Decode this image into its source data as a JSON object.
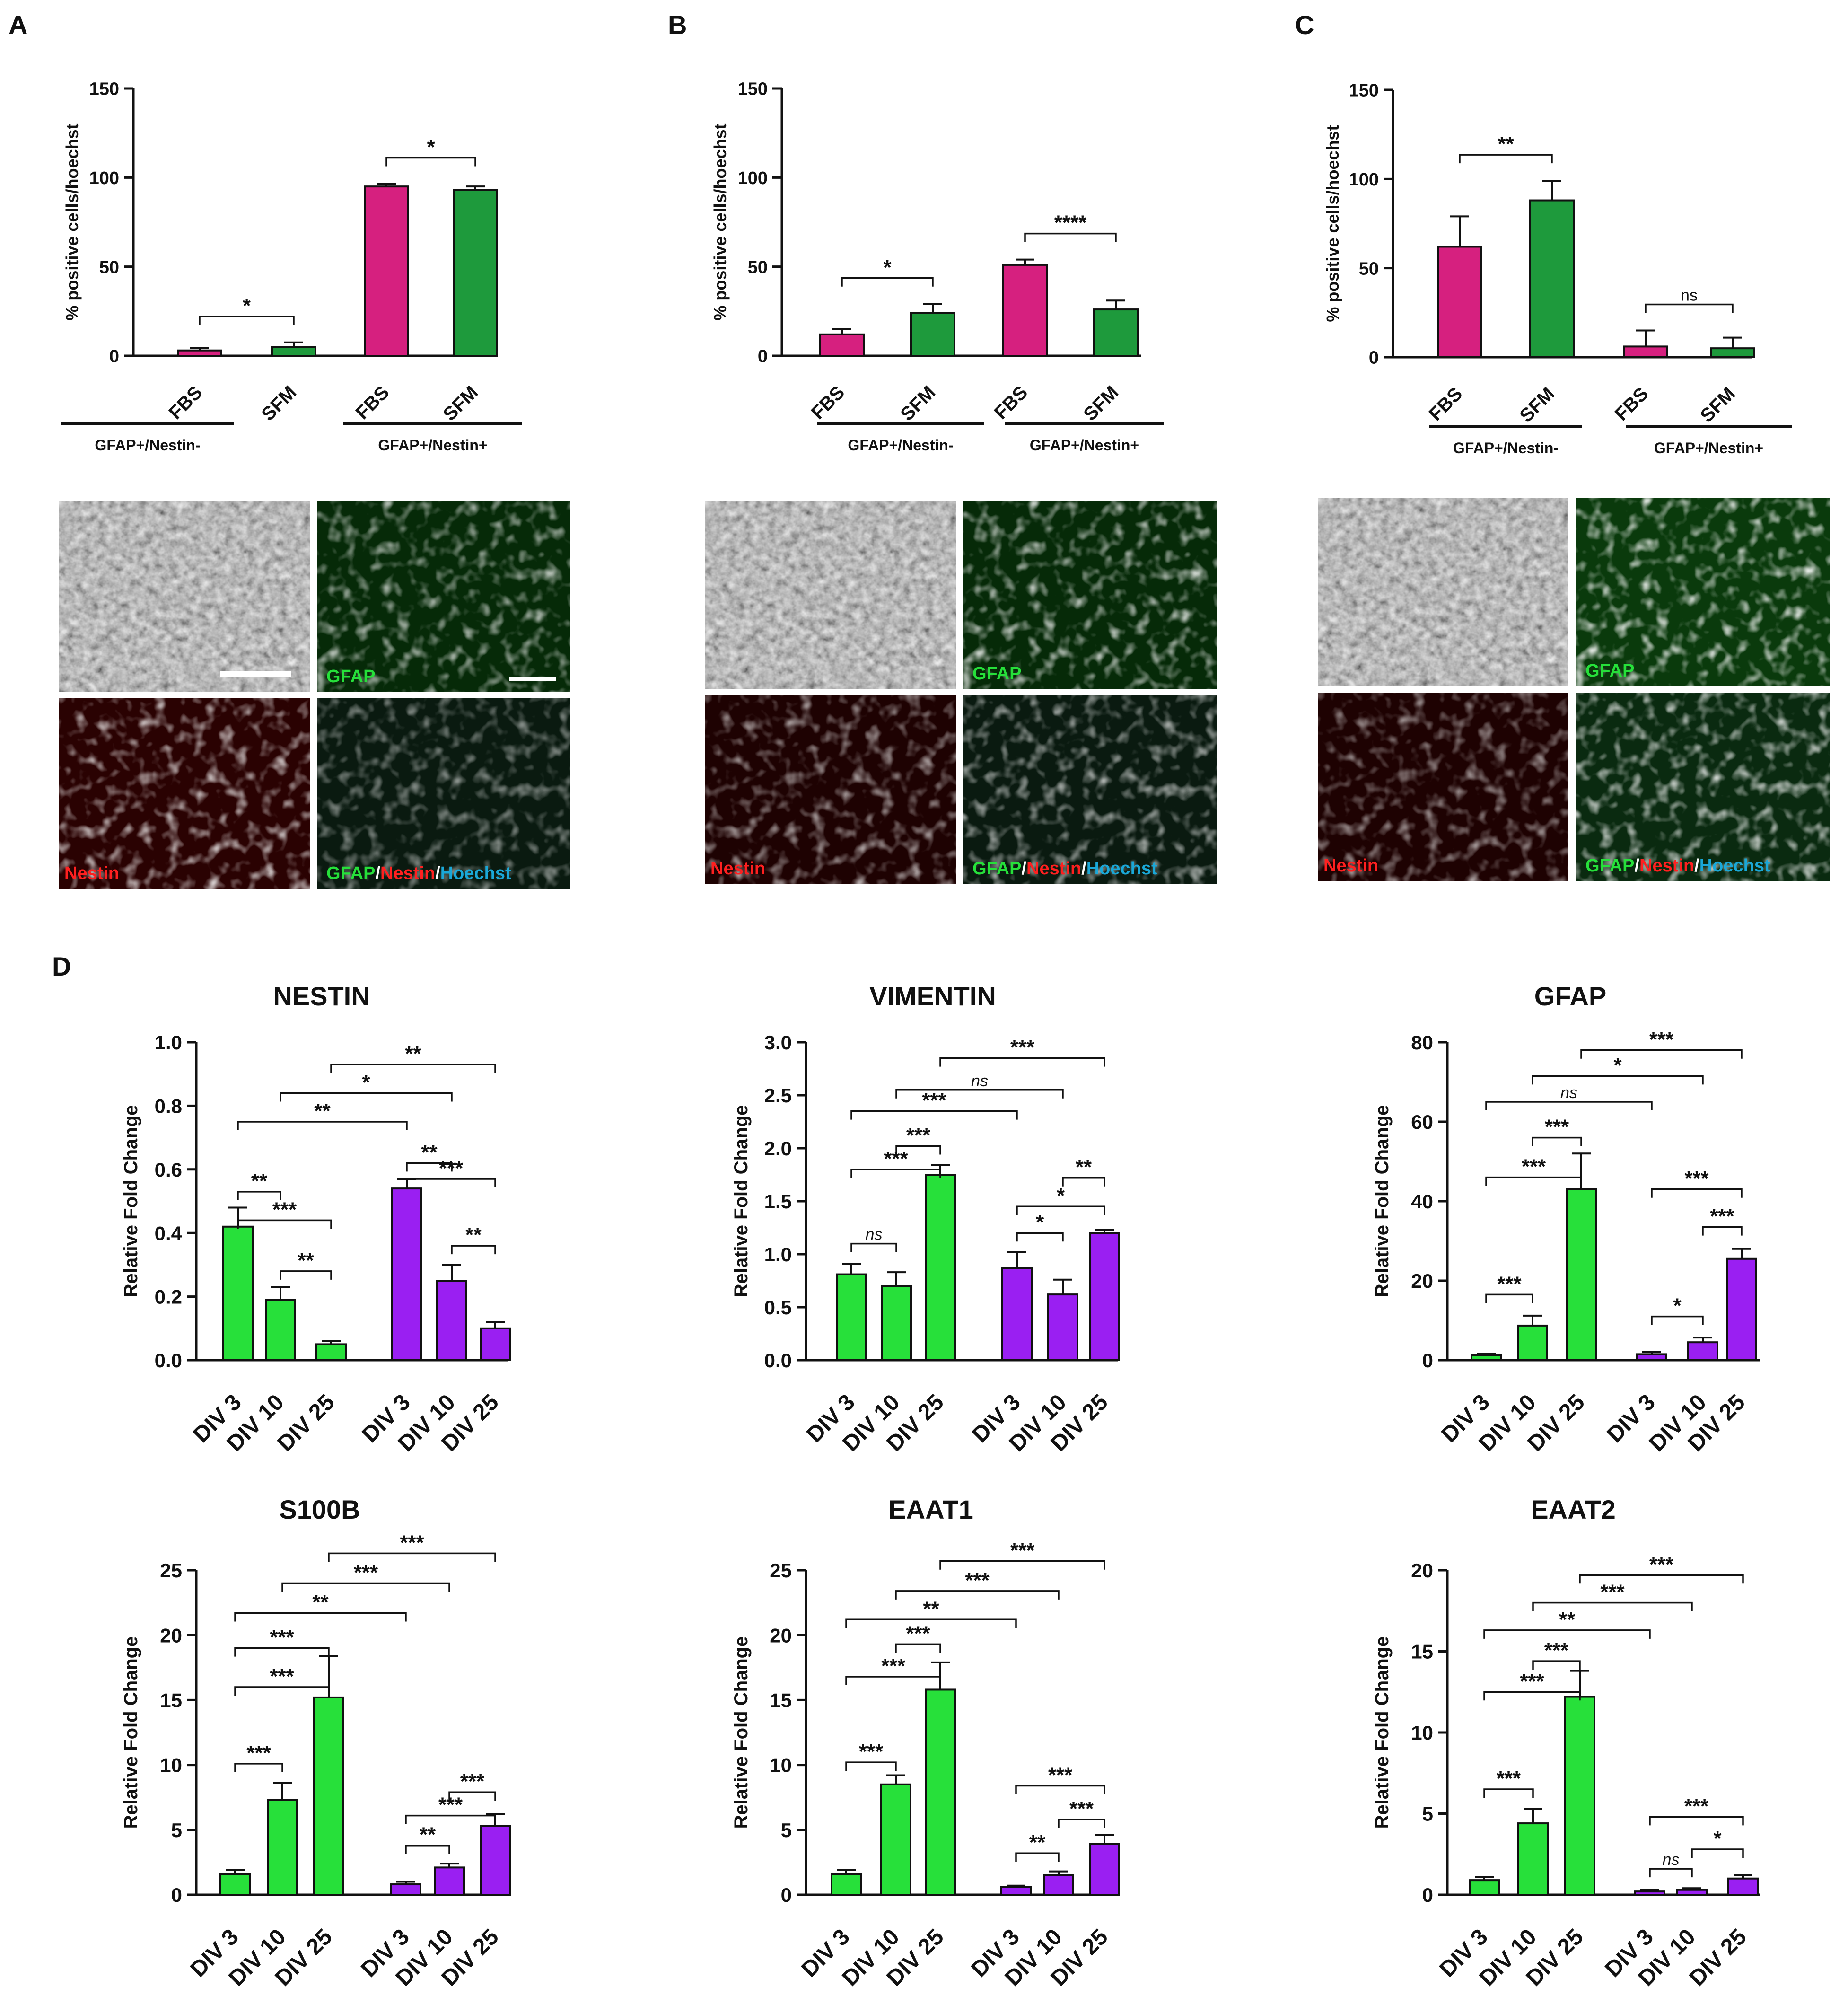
{
  "panels": [
    {
      "id": "A",
      "label": "A"
    },
    {
      "id": "B",
      "label": "B"
    },
    {
      "id": "C",
      "label": "C"
    },
    {
      "id": "D",
      "label": "D"
    }
  ],
  "colors": {
    "magenta": "#d6207f",
    "darkgreen": "#1e9a3c",
    "green": "#27e03a",
    "purple": "#9a1ff2",
    "gfap_text": "#26e03a",
    "nestin_text": "#ff2020",
    "hoechst_text": "#1aa8d8"
  },
  "micrographs": [
    {
      "panel": "A",
      "labels": {
        "gfap": "GFAP",
        "nestin": "Nestin",
        "merge_gfap": "GFAP",
        "merge_nestin": "Nestin",
        "merge_hoechst": "Hoechst"
      }
    },
    {
      "panel": "B",
      "labels": {
        "gfap": "GFAP",
        "nestin": "Nestin",
        "merge_gfap": "GFAP",
        "merge_nestin": "Nestin",
        "merge_hoechst": "Hoechst"
      }
    },
    {
      "panel": "C",
      "labels": {
        "gfap": "GFAP",
        "nestin": "Nestin",
        "merge_gfap": "GFAP",
        "merge_nestin": "Nestin",
        "merge_hoechst": "Hoechst"
      }
    }
  ],
  "chart_data": [
    {
      "panel": "A",
      "type": "bar",
      "title": "",
      "ylabel": "% positive cells/hoechst",
      "ylim": [
        0,
        150
      ],
      "yticks": [
        0,
        50,
        100,
        150
      ],
      "categories": [
        "FBS",
        "SFM",
        "FBS",
        "SFM"
      ],
      "groups": [
        {
          "label": "GFAP+/Nestin-",
          "members": [
            0,
            1
          ]
        },
        {
          "label": "GFAP+/Nestin+",
          "members": [
            2,
            3
          ]
        }
      ],
      "values": [
        3,
        5,
        95,
        93
      ],
      "errors": [
        1.5,
        2.5,
        1.5,
        2
      ],
      "bar_colors": [
        "magenta",
        "darkgreen",
        "magenta",
        "darkgreen"
      ],
      "significance": [
        {
          "from": 0,
          "to": 1,
          "level": "single",
          "label": "*"
        },
        {
          "from": 2,
          "to": 3,
          "level": "single",
          "label": "*"
        }
      ]
    },
    {
      "panel": "B",
      "type": "bar",
      "title": "",
      "ylabel": "% positive cells/hoechst",
      "ylim": [
        0,
        150
      ],
      "yticks": [
        0,
        50,
        100,
        150
      ],
      "categories": [
        "FBS",
        "SFM",
        "FBS",
        "SFM"
      ],
      "groups": [
        {
          "label": "GFAP+/Nestin-",
          "members": [
            0,
            1
          ]
        },
        {
          "label": "GFAP+/Nestin+",
          "members": [
            2,
            3
          ]
        }
      ],
      "values": [
        12,
        24,
        51,
        26
      ],
      "errors": [
        3,
        5,
        3,
        5
      ],
      "bar_colors": [
        "magenta",
        "darkgreen",
        "magenta",
        "darkgreen"
      ],
      "significance": [
        {
          "from": 0,
          "to": 1,
          "level": "single",
          "label": "*"
        },
        {
          "from": 2,
          "to": 3,
          "level": "single",
          "label": "****"
        }
      ]
    },
    {
      "panel": "C",
      "type": "bar",
      "title": "",
      "ylabel": "% positive cells/hoechst",
      "ylim": [
        0,
        150
      ],
      "yticks": [
        0,
        50,
        100,
        150
      ],
      "categories": [
        "FBS",
        "SFM",
        "FBS",
        "SFM"
      ],
      "groups": [
        {
          "label": "GFAP+/Nestin-",
          "members": [
            0,
            1
          ]
        },
        {
          "label": "GFAP+/Nestin+",
          "members": [
            2,
            3
          ]
        }
      ],
      "values": [
        62,
        88,
        6,
        5
      ],
      "errors": [
        17,
        11,
        9,
        6
      ],
      "bar_colors": [
        "magenta",
        "darkgreen",
        "magenta",
        "darkgreen"
      ],
      "significance": [
        {
          "from": 0,
          "to": 1,
          "level": "single",
          "label": "**"
        },
        {
          "from": 2,
          "to": 3,
          "level": "single",
          "label": "ns"
        }
      ]
    },
    {
      "panel": "D",
      "type": "bar",
      "title": "NESTIN",
      "ylabel": "Relative Fold Change",
      "ylim": [
        0,
        1.0
      ],
      "yticks": [
        "0.0",
        "0.2",
        "0.4",
        "0.6",
        "0.8",
        "1.0"
      ],
      "categories": [
        "DIV 3",
        "DIV 10",
        "DIV 25",
        "DIV 3",
        "DIV 10",
        "DIV 25"
      ],
      "values": [
        0.42,
        0.19,
        0.05,
        0.54,
        0.25,
        0.1
      ],
      "errors": [
        0.06,
        0.04,
        0.01,
        0.03,
        0.05,
        0.02
      ],
      "bar_colors": [
        "green",
        "green",
        "green",
        "purple",
        "purple",
        "purple"
      ],
      "significance": [
        {
          "from": 0,
          "to": 1,
          "y": 0.53,
          "label": "**"
        },
        {
          "from": 1,
          "to": 2,
          "y": 0.28,
          "label": "**"
        },
        {
          "from": 0,
          "to": 2,
          "y": 0.44,
          "label": "***"
        },
        {
          "from": 3,
          "to": 4,
          "y": 0.62,
          "label": "**"
        },
        {
          "from": 4,
          "to": 5,
          "y": 0.36,
          "label": "**"
        },
        {
          "from": 3,
          "to": 5,
          "y": 0.57,
          "label": "***"
        },
        {
          "from": 0,
          "to": 3,
          "y": 0.75,
          "label": "**"
        },
        {
          "from": 1,
          "to": 4,
          "y": 0.84,
          "label": "*"
        },
        {
          "from": 2,
          "to": 5,
          "y": 0.93,
          "label": "**"
        }
      ]
    },
    {
      "panel": "D",
      "type": "bar",
      "title": "VIMENTIN",
      "ylabel": "Relative Fold Change",
      "ylim": [
        0,
        3.0
      ],
      "yticks": [
        "0.0",
        "0.5",
        "1.0",
        "1.5",
        "2.0",
        "2.5",
        "3.0"
      ],
      "categories": [
        "DIV 3",
        "DIV 10",
        "DIV 25",
        "DIV 3",
        "DIV 10",
        "DIV 25"
      ],
      "values": [
        0.81,
        0.7,
        1.75,
        0.87,
        0.62,
        1.2
      ],
      "errors": [
        0.1,
        0.13,
        0.09,
        0.15,
        0.14,
        0.03
      ],
      "bar_colors": [
        "green",
        "green",
        "green",
        "purple",
        "purple",
        "purple"
      ],
      "significance": [
        {
          "from": 0,
          "to": 1,
          "y": 1.1,
          "label": "ns"
        },
        {
          "from": 1,
          "to": 2,
          "y": 2.02,
          "label": "***"
        },
        {
          "from": 0,
          "to": 2,
          "y": 1.8,
          "label": "***"
        },
        {
          "from": 3,
          "to": 4,
          "y": 1.2,
          "label": "*"
        },
        {
          "from": 4,
          "to": 5,
          "y": 1.72,
          "label": "**"
        },
        {
          "from": 3,
          "to": 5,
          "y": 1.45,
          "label": "*"
        },
        {
          "from": 0,
          "to": 3,
          "y": 2.35,
          "label": "***"
        },
        {
          "from": 1,
          "to": 4,
          "y": 2.55,
          "label": "ns"
        },
        {
          "from": 2,
          "to": 5,
          "y": 2.85,
          "label": "***"
        }
      ]
    },
    {
      "panel": "D",
      "type": "bar",
      "title": "GFAP",
      "ylabel": "Relative Fold Change",
      "ylim": [
        0,
        80
      ],
      "yticks": [
        "0",
        "20",
        "40",
        "60",
        "80"
      ],
      "categories": [
        "DIV 3",
        "DIV 10",
        "DIV 25",
        "DIV 3",
        "DIV 10",
        "DIV 25"
      ],
      "values": [
        1.2,
        8.7,
        43,
        1.5,
        4.5,
        25.5
      ],
      "errors": [
        0.4,
        2.5,
        9,
        0.6,
        1.2,
        2.5
      ],
      "bar_colors": [
        "green",
        "green",
        "green",
        "purple",
        "purple",
        "purple"
      ],
      "significance": [
        {
          "from": 0,
          "to": 1,
          "y": 16.5,
          "label": "***"
        },
        {
          "from": 1,
          "to": 2,
          "y": 56,
          "label": "***"
        },
        {
          "from": 0,
          "to": 2,
          "y": 46,
          "label": "***"
        },
        {
          "from": 3,
          "to": 4,
          "y": 11,
          "label": "*"
        },
        {
          "from": 4,
          "to": 5,
          "y": 33.5,
          "label": "***"
        },
        {
          "from": 3,
          "to": 5,
          "y": 43,
          "label": "***"
        },
        {
          "from": 0,
          "to": 3,
          "y": 65,
          "label": "ns"
        },
        {
          "from": 1,
          "to": 4,
          "y": 71.5,
          "label": "*"
        },
        {
          "from": 2,
          "to": 5,
          "y": 78,
          "label": "***"
        }
      ]
    },
    {
      "panel": "D",
      "type": "bar",
      "title": "S100B",
      "ylabel": "Relative Fold Change",
      "ylim": [
        0,
        25
      ],
      "yticks": [
        "0",
        "5",
        "10",
        "15",
        "20",
        "25"
      ],
      "categories": [
        "DIV 3",
        "DIV 10",
        "DIV 25",
        "DIV 3",
        "DIV 10",
        "DIV 25"
      ],
      "values": [
        1.6,
        7.3,
        15.2,
        0.8,
        2.1,
        5.3
      ],
      "errors": [
        0.3,
        1.3,
        3.2,
        0.2,
        0.3,
        0.9
      ],
      "bar_colors": [
        "green",
        "green",
        "green",
        "purple",
        "purple",
        "purple"
      ],
      "significance": [
        {
          "from": 0,
          "to": 1,
          "y": 10.1,
          "label": "***"
        },
        {
          "from": 0,
          "to": 2,
          "y": 16.0,
          "label": "***"
        },
        {
          "from": 0,
          "to": 2,
          "y": 19.0,
          "label": "***"
        },
        {
          "from": 3,
          "to": 4,
          "y": 3.8,
          "label": "**"
        },
        {
          "from": 4,
          "to": 5,
          "y": 7.9,
          "label": "***"
        },
        {
          "from": 3,
          "to": 5,
          "y": 6.1,
          "label": "***"
        },
        {
          "from": 0,
          "to": 3,
          "y": 21.7,
          "label": "**"
        },
        {
          "from": 1,
          "to": 4,
          "y": 24.0,
          "label": "***"
        },
        {
          "from": 2,
          "to": 5,
          "y": 26.3,
          "label": "***"
        }
      ]
    },
    {
      "panel": "D",
      "type": "bar",
      "title": "EAAT1",
      "ylabel": "Relative Fold Change",
      "ylim": [
        0,
        25
      ],
      "yticks": [
        "0",
        "5",
        "10",
        "15",
        "20",
        "25"
      ],
      "categories": [
        "DIV 3",
        "DIV 10",
        "DIV 25",
        "DIV 3",
        "DIV 10",
        "DIV 25"
      ],
      "values": [
        1.6,
        8.5,
        15.8,
        0.6,
        1.5,
        3.9
      ],
      "errors": [
        0.3,
        0.7,
        2.1,
        0.1,
        0.3,
        0.7
      ],
      "bar_colors": [
        "green",
        "green",
        "green",
        "purple",
        "purple",
        "purple"
      ],
      "significance": [
        {
          "from": 0,
          "to": 1,
          "y": 10.2,
          "label": "***"
        },
        {
          "from": 0,
          "to": 2,
          "y": 16.8,
          "label": "***"
        },
        {
          "from": 1,
          "to": 2,
          "y": 19.3,
          "label": "***"
        },
        {
          "from": 3,
          "to": 4,
          "y": 3.2,
          "label": "**"
        },
        {
          "from": 4,
          "to": 5,
          "y": 5.8,
          "label": "***"
        },
        {
          "from": 3,
          "to": 5,
          "y": 8.4,
          "label": "***"
        },
        {
          "from": 0,
          "to": 3,
          "y": 21.2,
          "label": "**"
        },
        {
          "from": 1,
          "to": 4,
          "y": 23.4,
          "label": "***"
        },
        {
          "from": 2,
          "to": 5,
          "y": 25.7,
          "label": "***"
        }
      ]
    },
    {
      "panel": "D",
      "type": "bar",
      "title": "EAAT2",
      "ylabel": "Relative Fold Change",
      "ylim": [
        0,
        20
      ],
      "yticks": [
        "0",
        "5",
        "10",
        "15",
        "20"
      ],
      "categories": [
        "DIV 3",
        "DIV 10",
        "DIV 25",
        "DIV 3",
        "DIV 10",
        "DIV 25"
      ],
      "values": [
        0.9,
        4.4,
        12.2,
        0.2,
        0.3,
        1.0
      ],
      "errors": [
        0.2,
        0.9,
        1.6,
        0.1,
        0.1,
        0.2
      ],
      "bar_colors": [
        "green",
        "green",
        "green",
        "purple",
        "purple",
        "purple"
      ],
      "significance": [
        {
          "from": 0,
          "to": 1,
          "y": 6.5,
          "label": "***"
        },
        {
          "from": 0,
          "to": 2,
          "y": 12.5,
          "label": "***"
        },
        {
          "from": 1,
          "to": 2,
          "y": 14.4,
          "label": "***"
        },
        {
          "from": 3,
          "to": 4,
          "y": 1.6,
          "label": "ns"
        },
        {
          "from": 4,
          "to": 5,
          "y": 2.8,
          "label": "*"
        },
        {
          "from": 3,
          "to": 5,
          "y": 4.8,
          "label": "***"
        },
        {
          "from": 0,
          "to": 3,
          "y": 16.3,
          "label": "**"
        },
        {
          "from": 1,
          "to": 4,
          "y": 18.0,
          "label": "***"
        },
        {
          "from": 2,
          "to": 5,
          "y": 19.7,
          "label": "***"
        }
      ]
    }
  ]
}
